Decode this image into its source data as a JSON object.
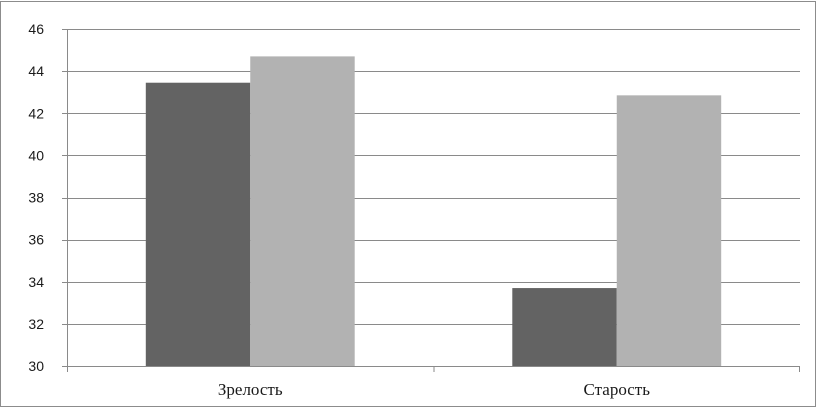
{
  "chart_data": {
    "type": "bar",
    "categories": [
      "Зрелость",
      "Старость"
    ],
    "series": [
      {
        "values": [
          43.45,
          33.7
        ],
        "color": "#636363"
      },
      {
        "values": [
          44.7,
          42.85
        ],
        "color": "#b2b2b2"
      }
    ],
    "ylim": [
      30,
      46
    ],
    "yticks": [
      "30",
      "32",
      "34",
      "36",
      "38",
      "40",
      "42",
      "44",
      "46"
    ],
    "grid": true,
    "legend": "none",
    "title": "",
    "xlabel": "",
    "ylabel": ""
  }
}
